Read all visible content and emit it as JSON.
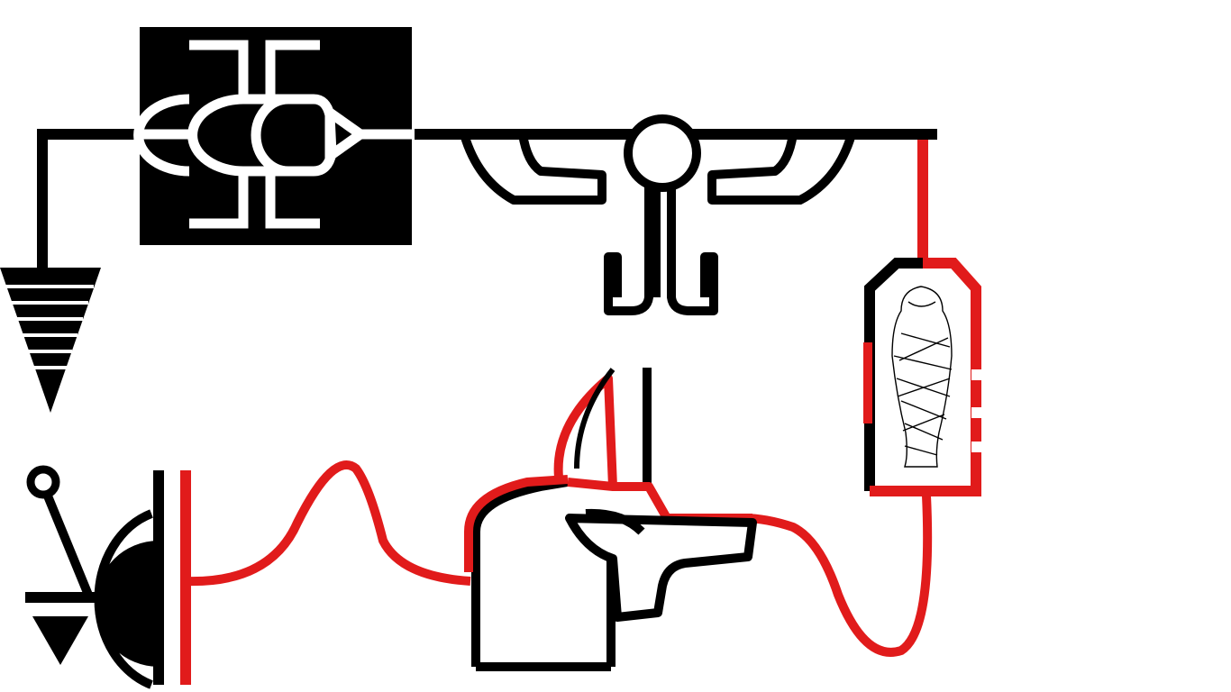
{
  "diagram": {
    "style": "egyptian-hieroglyphic-circuit",
    "text_labels": [],
    "colors": {
      "background": "#ffffff",
      "ink": "#000000",
      "accent": "#e11b1b",
      "highlight": "#ffffff"
    },
    "components": [
      {
        "name": "scarab-beetle-inductor-icon",
        "kind": "inductor"
      },
      {
        "name": "winged-sun-disk-icon",
        "kind": "winged-sun"
      },
      {
        "name": "mummy-sarcophagus-icon",
        "kind": "load"
      },
      {
        "name": "anubis-head-icon",
        "kind": "jackal-head"
      },
      {
        "name": "djed-lever-switch-icon",
        "kind": "switch"
      },
      {
        "name": "capacitor-crescent-icon",
        "kind": "capacitor"
      },
      {
        "name": "ground-symbol-icon",
        "kind": "ground"
      },
      {
        "name": "voltage-peak-wire-icon",
        "kind": "waveform"
      }
    ]
  }
}
